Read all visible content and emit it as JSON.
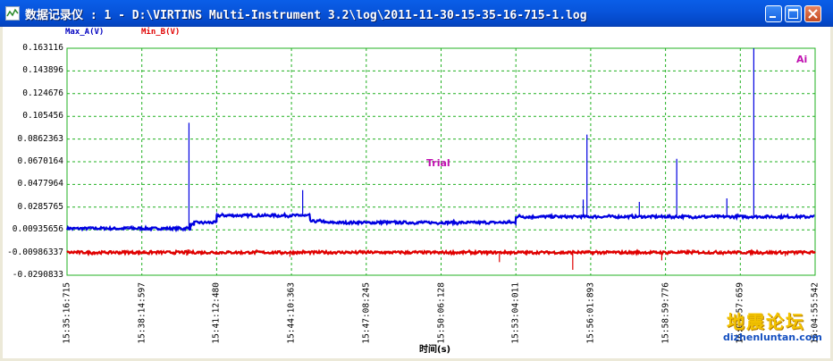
{
  "window": {
    "title": "数据记录仪 : 1 - D:\\VIRTINS Multi-Instrument 3.2\\log\\2011-11-30-15-35-16-715-1.log",
    "minimize_icon": "minimize-icon",
    "maximize_icon": "maximize-icon",
    "close_icon": "close-icon"
  },
  "overlay": {
    "trial": "Trial",
    "corner_label": "Ai",
    "watermark_text": "地震论坛",
    "watermark_url": "dizhenluntan.com"
  },
  "chart_data": {
    "type": "line",
    "title": "",
    "xlabel": "时间(s)",
    "ylabel": "",
    "grid": true,
    "ylim": [
      -0.0290833,
      0.163116
    ],
    "y_ticks": [
      "0.163116",
      "0.143896",
      "0.124676",
      "0.105456",
      "0.0862363",
      "0.0670164",
      "0.0477964",
      "0.0285765",
      "0.00935656",
      "-0.00986337",
      "-0.0290833"
    ],
    "x_ticks": [
      "15:35:16:715",
      "15:38:14:597",
      "15:41:12:480",
      "15:44:10:363",
      "15:47:08:245",
      "15:50:06:128",
      "15:53:04:011",
      "15:56:01:893",
      "15:58:59:776",
      "16:01:57:659",
      "16:04:55:542"
    ],
    "series": [
      {
        "name": "Max_A(V)",
        "color": "#0000e0",
        "segments": [
          {
            "from": 0.0,
            "to": 0.165,
            "value": 0.0105
          },
          {
            "from": 0.165,
            "to": 0.17,
            "value": 0.014
          },
          {
            "from": 0.17,
            "to": 0.2,
            "value": 0.0155
          },
          {
            "from": 0.2,
            "to": 0.325,
            "value": 0.0215
          },
          {
            "from": 0.325,
            "to": 0.345,
            "value": 0.0165
          },
          {
            "from": 0.345,
            "to": 0.6,
            "value": 0.0155
          },
          {
            "from": 0.6,
            "to": 1.0,
            "value": 0.0205
          }
        ],
        "spikes": [
          {
            "x": 0.163,
            "value": 0.1
          },
          {
            "x": 0.315,
            "value": 0.043
          },
          {
            "x": 0.695,
            "value": 0.09
          },
          {
            "x": 0.815,
            "value": 0.0695
          },
          {
            "x": 0.918,
            "value": 0.163
          },
          {
            "x": 0.69,
            "value": 0.035
          },
          {
            "x": 0.765,
            "value": 0.033
          },
          {
            "x": 0.882,
            "value": 0.036
          }
        ]
      },
      {
        "name": "Min_B(V)",
        "color": "#e00000",
        "segments": [
          {
            "from": 0.0,
            "to": 1.0,
            "value": -0.0098
          }
        ],
        "spikes": [
          {
            "x": 0.16,
            "value": -0.0125
          },
          {
            "x": 0.298,
            "value": -0.0135
          },
          {
            "x": 0.578,
            "value": -0.018
          },
          {
            "x": 0.676,
            "value": -0.0245
          },
          {
            "x": 0.795,
            "value": -0.0165
          },
          {
            "x": 0.96,
            "value": -0.013
          }
        ]
      }
    ]
  }
}
